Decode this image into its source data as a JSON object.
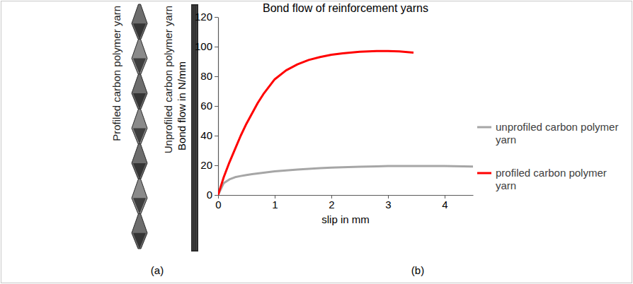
{
  "figure": {
    "yarn_labels": [
      "Profiled carbon polymer yarn",
      "Unprofiled carbon polymer yarn"
    ],
    "panel_labels": [
      "(a)",
      "(b)"
    ]
  },
  "chart_data": {
    "type": "line",
    "title": "Bond flow of reinforcement yarns",
    "x_label": "slip in mm",
    "y_label": "Bond flow in N/mm",
    "x": [
      0,
      0.1,
      0.2,
      0.3,
      0.4,
      0.5,
      0.6,
      0.7,
      0.8,
      0.9,
      1.0,
      1.2,
      1.4,
      1.6,
      1.8,
      2.0,
      2.2,
      2.5,
      2.8,
      3.0,
      3.2,
      3.45,
      3.5,
      4.0,
      4.5
    ],
    "series": [
      {
        "name": "unprofiled carbon polymer yarn",
        "color": "#a6a6a6",
        "values": [
          0,
          8,
          10.5,
          12,
          12.8,
          13.5,
          14,
          14.5,
          15,
          15.5,
          16,
          16.6,
          17.1,
          17.6,
          18.1,
          18.5,
          18.7,
          19,
          19.3,
          19.5,
          19.5,
          19.5,
          19.5,
          19.5,
          19.2
        ]
      },
      {
        "name": "profiled carbon polymer yarn",
        "color": "#ff0000",
        "values": [
          0,
          12,
          22,
          31,
          40,
          48,
          55,
          62,
          68,
          73,
          78,
          84,
          88,
          91,
          93,
          94.5,
          95.5,
          96.5,
          97,
          97,
          96.8,
          96,
          null,
          null,
          null
        ]
      }
    ],
    "xlim": [
      0,
      4.5
    ],
    "xticks": [
      0,
      1,
      2,
      3,
      4
    ],
    "ylim": [
      0,
      120
    ],
    "yticks": [
      0,
      20,
      40,
      60,
      80,
      100,
      120
    ],
    "grid": false,
    "legend": "right"
  }
}
